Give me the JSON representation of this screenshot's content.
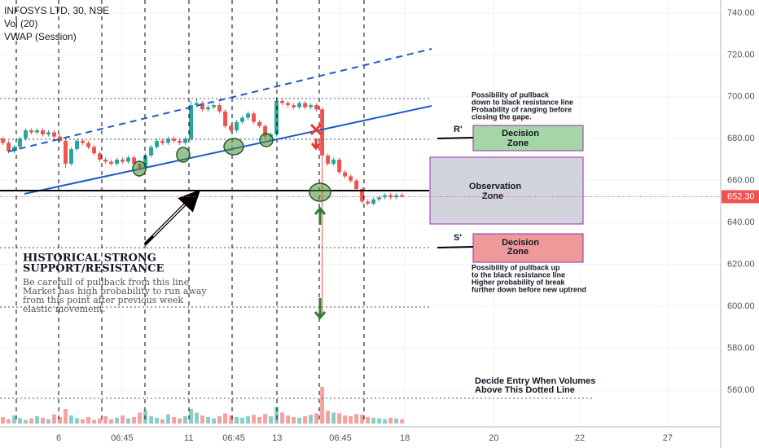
{
  "chart_data": {
    "type": "candlestick",
    "title": "INFOSYS LTD, 30, NSE",
    "indicators": [
      "Vol (20)",
      "VWAP (Session)"
    ],
    "up_color": "#26a69a",
    "down_color": "#ef5350",
    "x": [
      0,
      1,
      2,
      3,
      4,
      5,
      6,
      7,
      8,
      9,
      10,
      11,
      12,
      13,
      14,
      15,
      16,
      17,
      18,
      19,
      20,
      21,
      22,
      23,
      24,
      25,
      26,
      27,
      28,
      29,
      30,
      31,
      32,
      33,
      34,
      35,
      36,
      37,
      38,
      39,
      40,
      41,
      42,
      43,
      44,
      45,
      46,
      47,
      48,
      49,
      50,
      51,
      52,
      53,
      54,
      55,
      56,
      57,
      58,
      59,
      60,
      61,
      62,
      63,
      64,
      65,
      66,
      67,
      68,
      69,
      70
    ],
    "open": [
      680,
      678,
      674,
      676,
      680,
      684,
      683,
      684,
      682,
      683,
      681,
      679,
      668,
      675,
      679,
      678,
      676,
      673,
      670,
      669,
      668,
      670,
      669,
      671,
      668,
      666,
      672,
      676,
      679,
      678,
      680,
      679,
      678,
      680,
      696,
      697,
      694,
      695,
      696,
      693,
      686,
      684,
      688,
      690,
      692,
      688,
      686,
      681,
      682,
      698,
      697,
      696,
      695,
      697,
      695,
      696,
      694,
      672,
      668,
      670,
      664,
      662,
      660,
      656,
      650,
      649,
      651,
      652,
      653,
      652,
      653
    ],
    "high": [
      681,
      679,
      677,
      681,
      685,
      685,
      685,
      685,
      684,
      684,
      682,
      680,
      676,
      680,
      680,
      679,
      677,
      674,
      671,
      670,
      671,
      671,
      672,
      672,
      669,
      673,
      677,
      680,
      680,
      681,
      681,
      680,
      681,
      698,
      699,
      698,
      696,
      697,
      697,
      694,
      687,
      689,
      691,
      693,
      693,
      689,
      687,
      683,
      700,
      699,
      698,
      697,
      698,
      698,
      697,
      697,
      695,
      673,
      671,
      671,
      665,
      663,
      661,
      657,
      651,
      652,
      653,
      654,
      654,
      654,
      654
    ],
    "low": [
      677,
      673,
      673,
      675,
      679,
      682,
      682,
      681,
      681,
      680,
      678,
      666,
      667,
      674,
      677,
      675,
      672,
      669,
      668,
      667,
      667,
      668,
      668,
      667,
      665,
      665,
      671,
      675,
      677,
      677,
      678,
      677,
      677,
      679,
      695,
      693,
      693,
      694,
      692,
      685,
      683,
      683,
      687,
      689,
      687,
      685,
      680,
      680,
      681,
      696,
      695,
      694,
      694,
      694,
      694,
      693,
      596,
      667,
      667,
      663,
      661,
      659,
      655,
      649,
      648,
      648,
      650,
      651,
      651,
      651,
      652
    ],
    "close": [
      678,
      674,
      676,
      680,
      684,
      683,
      684,
      682,
      683,
      681,
      679,
      668,
      675,
      679,
      678,
      676,
      673,
      670,
      669,
      668,
      670,
      669,
      671,
      668,
      666,
      672,
      676,
      679,
      678,
      680,
      679,
      678,
      680,
      696,
      697,
      694,
      695,
      696,
      693,
      686,
      684,
      688,
      690,
      692,
      688,
      686,
      681,
      682,
      698,
      697,
      696,
      695,
      697,
      695,
      696,
      694,
      672,
      668,
      670,
      664,
      662,
      660,
      656,
      650,
      649,
      651,
      652,
      653,
      652,
      653,
      652.3
    ],
    "volumes": [
      18,
      12,
      22,
      15,
      10,
      14,
      20,
      16,
      12,
      25,
      18,
      40,
      22,
      15,
      12,
      18,
      10,
      14,
      20,
      12,
      16,
      22,
      14,
      18,
      30,
      35,
      20,
      16,
      12,
      25,
      18,
      14,
      20,
      40,
      30,
      22,
      18,
      14,
      20,
      28,
      22,
      18,
      16,
      20,
      24,
      18,
      26,
      20,
      45,
      30,
      22,
      18,
      16,
      20,
      24,
      28,
      100,
      35,
      30,
      28,
      22,
      20,
      26,
      24,
      18,
      16,
      14,
      12,
      16,
      14,
      12
    ],
    "xlim": [
      -0.5,
      125.9
    ],
    "xticks": [
      {
        "value": 9.8,
        "label": "6"
      },
      {
        "value": 20.9,
        "label": "06:45"
      },
      {
        "value": 32.6,
        "label": "11"
      },
      {
        "value": 40.5,
        "label": "06:45"
      },
      {
        "value": 48.1,
        "label": "13"
      },
      {
        "value": 59.2,
        "label": "06:45"
      },
      {
        "value": 70.5,
        "label": "18"
      },
      {
        "value": 86.1,
        "label": "20"
      },
      {
        "value": 101.2,
        "label": "22"
      },
      {
        "value": 116.6,
        "label": "27"
      }
    ],
    "ylim": [
      544,
      746.2
    ],
    "yticks": [
      {
        "value": 740,
        "label": "740.00"
      },
      {
        "value": 720,
        "label": "720.00"
      },
      {
        "value": 700,
        "label": "700.00"
      },
      {
        "value": 680,
        "label": "680.00"
      },
      {
        "value": 660,
        "label": "660.00"
      },
      {
        "value": 640,
        "label": "640.00"
      },
      {
        "value": 620,
        "label": "620.00"
      },
      {
        "value": 600,
        "label": "600.00"
      },
      {
        "value": 580,
        "label": "580.00"
      },
      {
        "value": 560,
        "label": "560.00"
      }
    ],
    "last_price": {
      "value": 652.3,
      "label": "652.30"
    },
    "annotations": {
      "support_title": [
        "HISTORICAL STRONG",
        "SUPPORT/RESISTANCE"
      ],
      "support_note": [
        "Be carefull of pullback from this line",
        "Market has high probability to run away",
        "from this point after previous week",
        "elastic movement."
      ],
      "upper_note": [
        "Possibility of pullback",
        "down to black resistance line",
        "Probability of ranging before",
        "closing the gape."
      ],
      "lower_note": [
        "Possibility of pullback up",
        "to the black resistance line",
        "Higher probability of break",
        "further down before new uptrend"
      ],
      "volume_note": [
        "Decide Entry When Volumes",
        "Above This Dotted Line"
      ],
      "r_label": "R'",
      "s_label": "S'",
      "r_zone": [
        "Decision",
        "Zone"
      ],
      "observation_zone": [
        "Observation",
        "Zone"
      ],
      "s_zone": [
        "Decision",
        "Zone"
      ]
    }
  }
}
